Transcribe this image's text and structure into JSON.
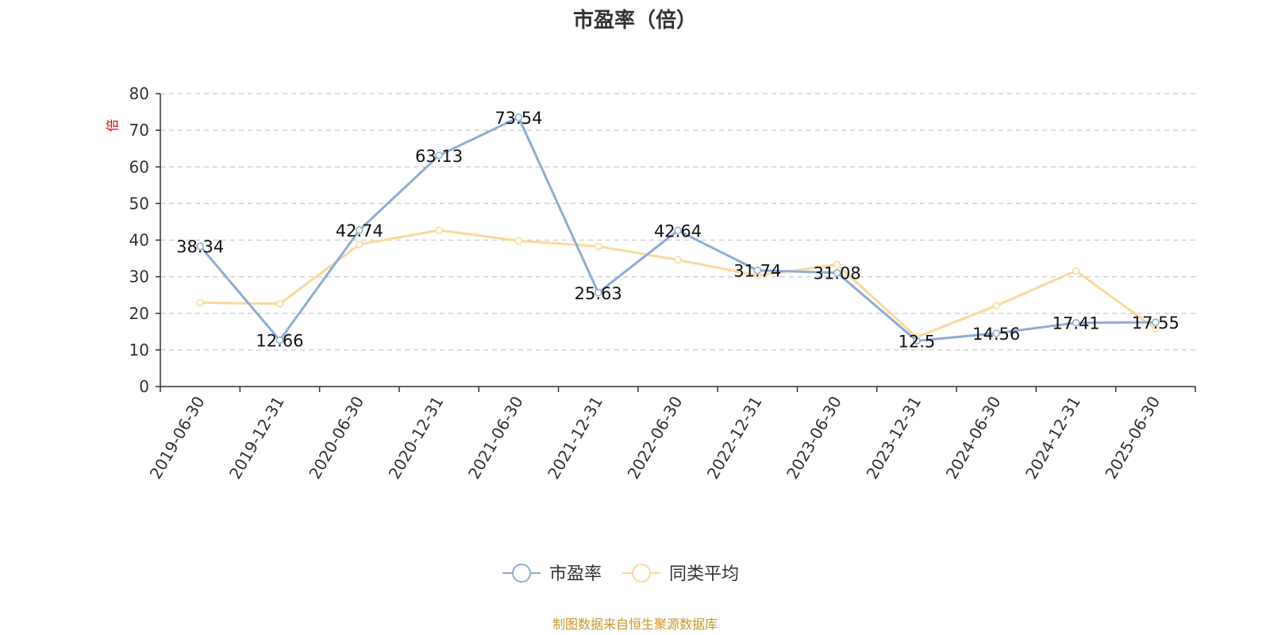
{
  "chart_data": {
    "type": "line",
    "title": "市盈率（倍）",
    "unit": "倍",
    "categories": [
      "2019-06-30",
      "2019-12-31",
      "2020-06-30",
      "2020-12-31",
      "2021-06-30",
      "2021-12-31",
      "2022-06-30",
      "2022-12-31",
      "2023-06-30",
      "2023-12-31",
      "2024-06-30",
      "2024-12-31",
      "2025-06-30"
    ],
    "series": [
      {
        "name": "市盈率",
        "color": "#8eacd8",
        "values": [
          38.34,
          12.66,
          42.74,
          63.13,
          73.54,
          25.63,
          42.64,
          31.74,
          31.08,
          12.5,
          14.56,
          17.41,
          17.55
        ],
        "labels": [
          "38.34",
          "12.66",
          "42.74",
          "63.13",
          "73.54",
          "25.63",
          "42.64",
          "31.74",
          "31.08",
          "12.5",
          "14.56",
          "17.41",
          "17.55"
        ]
      },
      {
        "name": "同类平均",
        "color": "#fbd99a",
        "values": [
          22.9,
          22.6,
          38.8,
          42.7,
          39.8,
          38.3,
          34.6,
          30.3,
          33.3,
          13.5,
          22.1,
          31.6,
          15.8
        ]
      }
    ],
    "yticks": [
      0,
      10,
      20,
      30,
      40,
      50,
      60,
      70,
      80
    ],
    "ylim": [
      0,
      80
    ],
    "grid": true,
    "legend_position": "bottom-center"
  },
  "source_note": "制图数据来自恒生聚源数据库"
}
